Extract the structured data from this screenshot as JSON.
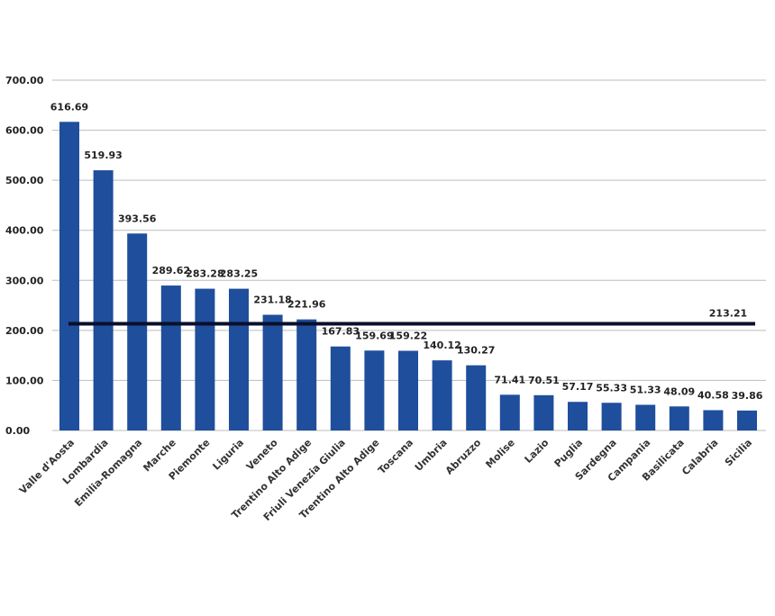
{
  "chart_data": {
    "type": "bar",
    "categories": [
      "Valle d'Aosta",
      "Lombardia",
      "Emilia-Romagna",
      "Marche",
      "Piemonte",
      "Liguria",
      "Veneto",
      "Trentino Alto Adige",
      "Friuli Venezia Giulia",
      "Trentino Alto Adige",
      "Toscana",
      "Umbria",
      "Abruzzo",
      "Molise",
      "Lazio",
      "Puglia",
      "Sardegna",
      "Campania",
      "Basilicata",
      "Calabria",
      "Sicilia"
    ],
    "values": [
      616.69,
      519.93,
      393.56,
      289.62,
      283.28,
      283.25,
      231.18,
      221.96,
      167.83,
      159.69,
      159.22,
      140.12,
      130.27,
      71.41,
      70.51,
      57.17,
      55.33,
      51.33,
      48.09,
      40.58,
      39.86
    ],
    "value_labels": [
      "616.69",
      "519.93",
      "393.56",
      "289.62",
      "283.28",
      "283.25",
      "231.18",
      "221.96",
      "167.83",
      "159.69",
      "159.22",
      "140.12",
      "130.27",
      "71.41",
      "70.51",
      "57.17",
      "55.33",
      "51.33",
      "48.09",
      "40.58",
      "39.86"
    ],
    "reference_line": {
      "value": 213.21,
      "label": "213.21",
      "color": "#0a0f2a"
    },
    "y_ticks": [
      "0.00",
      "100.00",
      "200.00",
      "300.00",
      "400.00",
      "500.00",
      "600.00",
      "700.00"
    ],
    "ylim": [
      0,
      700
    ],
    "grid": true,
    "bar_color": "#1f4e9c",
    "title": "",
    "xlabel": "",
    "ylabel": ""
  }
}
